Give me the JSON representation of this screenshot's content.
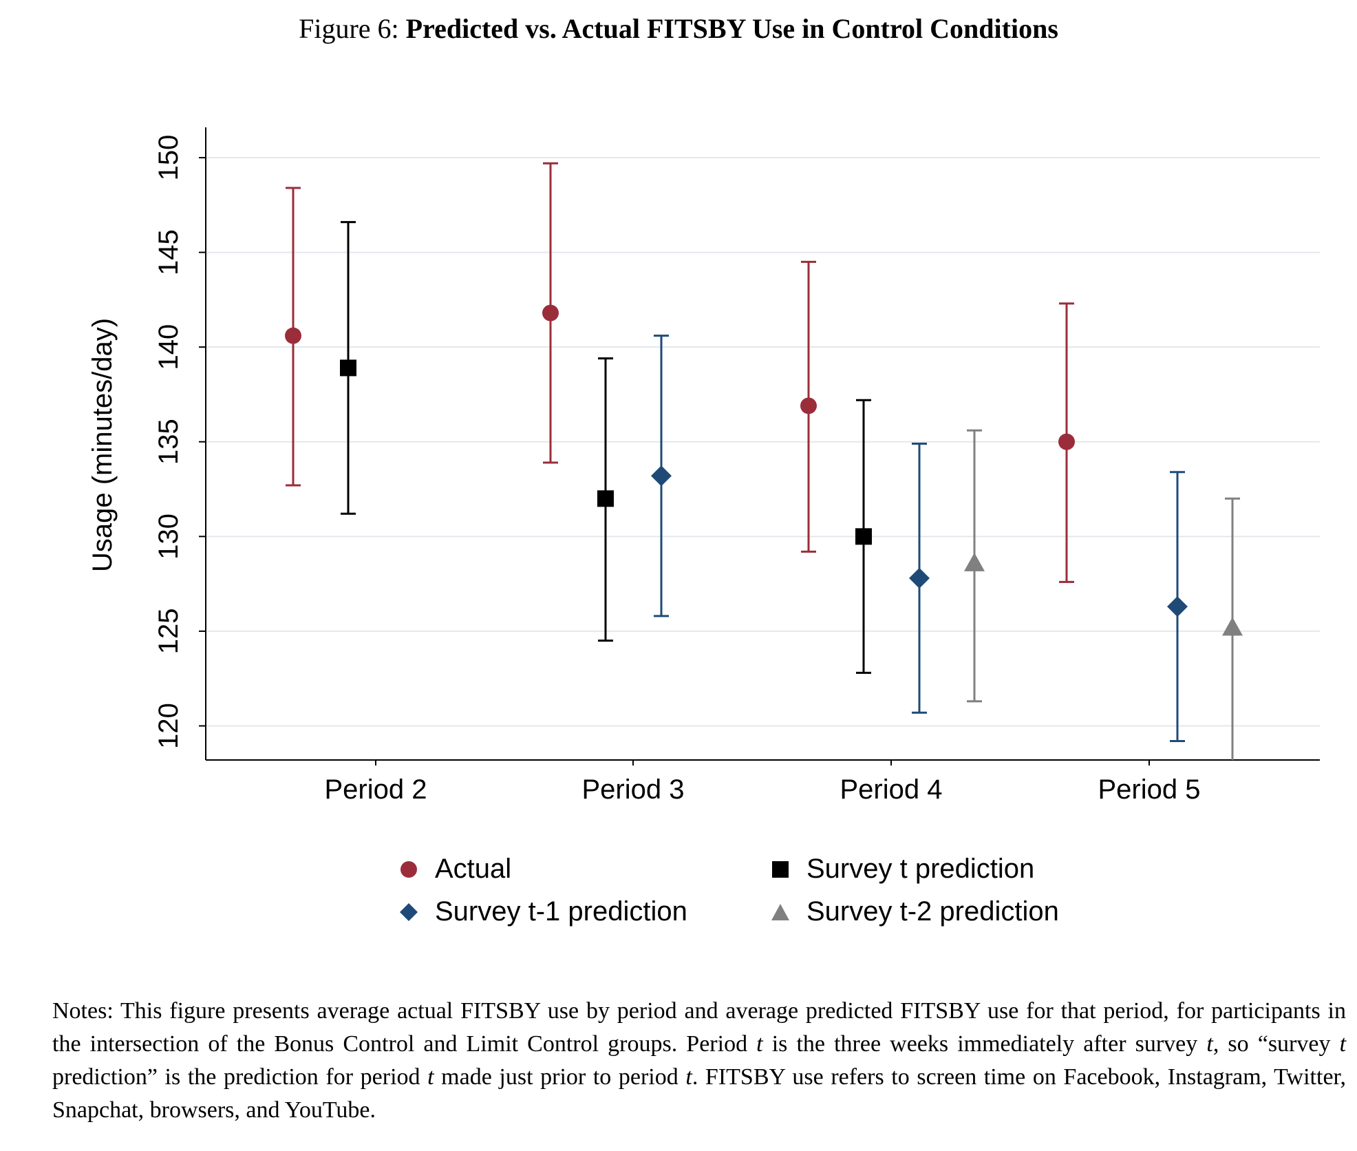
{
  "figure": {
    "label": "Figure 6:",
    "title": "Predicted vs. Actual FITSBY Use in Control Conditions"
  },
  "chart_data": {
    "type": "scatter",
    "subtype": "point estimates with confidence intervals",
    "ylabel": "Usage (minutes/day)",
    "xlabel": "",
    "categories": [
      "Period 2",
      "Period 3",
      "Period 4",
      "Period 5"
    ],
    "ylim": [
      118.2,
      151.6
    ],
    "yticks": [
      120,
      125,
      130,
      135,
      140,
      145,
      150
    ],
    "grid": true,
    "legend_position": "bottom",
    "series": [
      {
        "name": "Actual",
        "marker": "circle",
        "color": "#9b2d3a",
        "points": [
          {
            "category": "Period 2",
            "y": 140.6,
            "low": 132.7,
            "high": 148.4
          },
          {
            "category": "Period 3",
            "y": 141.8,
            "low": 133.9,
            "high": 149.7
          },
          {
            "category": "Period 4",
            "y": 136.9,
            "low": 129.2,
            "high": 144.5
          },
          {
            "category": "Period 5",
            "y": 135.0,
            "low": 127.6,
            "high": 142.3
          }
        ]
      },
      {
        "name": "Survey t prediction",
        "marker": "square",
        "color": "#000000",
        "points": [
          {
            "category": "Period 2",
            "y": 138.9,
            "low": 131.2,
            "high": 146.6
          },
          {
            "category": "Period 3",
            "y": 132.0,
            "low": 124.5,
            "high": 139.4
          },
          {
            "category": "Period 4",
            "y": 130.0,
            "low": 122.8,
            "high": 137.2
          }
        ]
      },
      {
        "name": "Survey t-1 prediction",
        "marker": "diamond",
        "color": "#1f4a78",
        "points": [
          {
            "category": "Period 3",
            "y": 133.2,
            "low": 125.8,
            "high": 140.6
          },
          {
            "category": "Period 4",
            "y": 127.8,
            "low": 120.7,
            "high": 134.9
          },
          {
            "category": "Period 5",
            "y": 126.3,
            "low": 119.2,
            "high": 133.4
          }
        ]
      },
      {
        "name": "Survey t-2 prediction",
        "marker": "triangle",
        "color": "#808080",
        "points": [
          {
            "category": "Period 4",
            "y": 128.6,
            "low": 121.3,
            "high": 135.6
          },
          {
            "category": "Period 5",
            "y": 125.2,
            "low": 118.2,
            "high": 132.0
          }
        ]
      }
    ]
  },
  "legend": {
    "items": [
      {
        "label": "Actual",
        "marker": "circle",
        "color": "#9b2d3a"
      },
      {
        "label": "Survey t prediction",
        "marker": "square",
        "color": "#000000"
      },
      {
        "label": "Survey t-1 prediction",
        "marker": "diamond",
        "color": "#1f4a78"
      },
      {
        "label": "Survey t-2 prediction",
        "marker": "triangle",
        "color": "#808080"
      }
    ]
  },
  "notes": {
    "s1": "Notes: This figure presents average actual FITSBY use by period and average predicted FITSBY use for that period, for participants in the intersection of the Bonus Control and Limit Control groups. Period ",
    "t1": "t",
    "s2": " is the three weeks immediately after survey ",
    "t2": "t",
    "s3": ", so “survey ",
    "t3": "t",
    "s4": " prediction” is the prediction for period ",
    "t4": "t",
    "s5": " made just prior to period ",
    "t5": "t",
    "s6": ". FITSBY use refers to screen time on Facebook, Instagram, Twitter, Snapchat, browsers, and YouTube."
  }
}
